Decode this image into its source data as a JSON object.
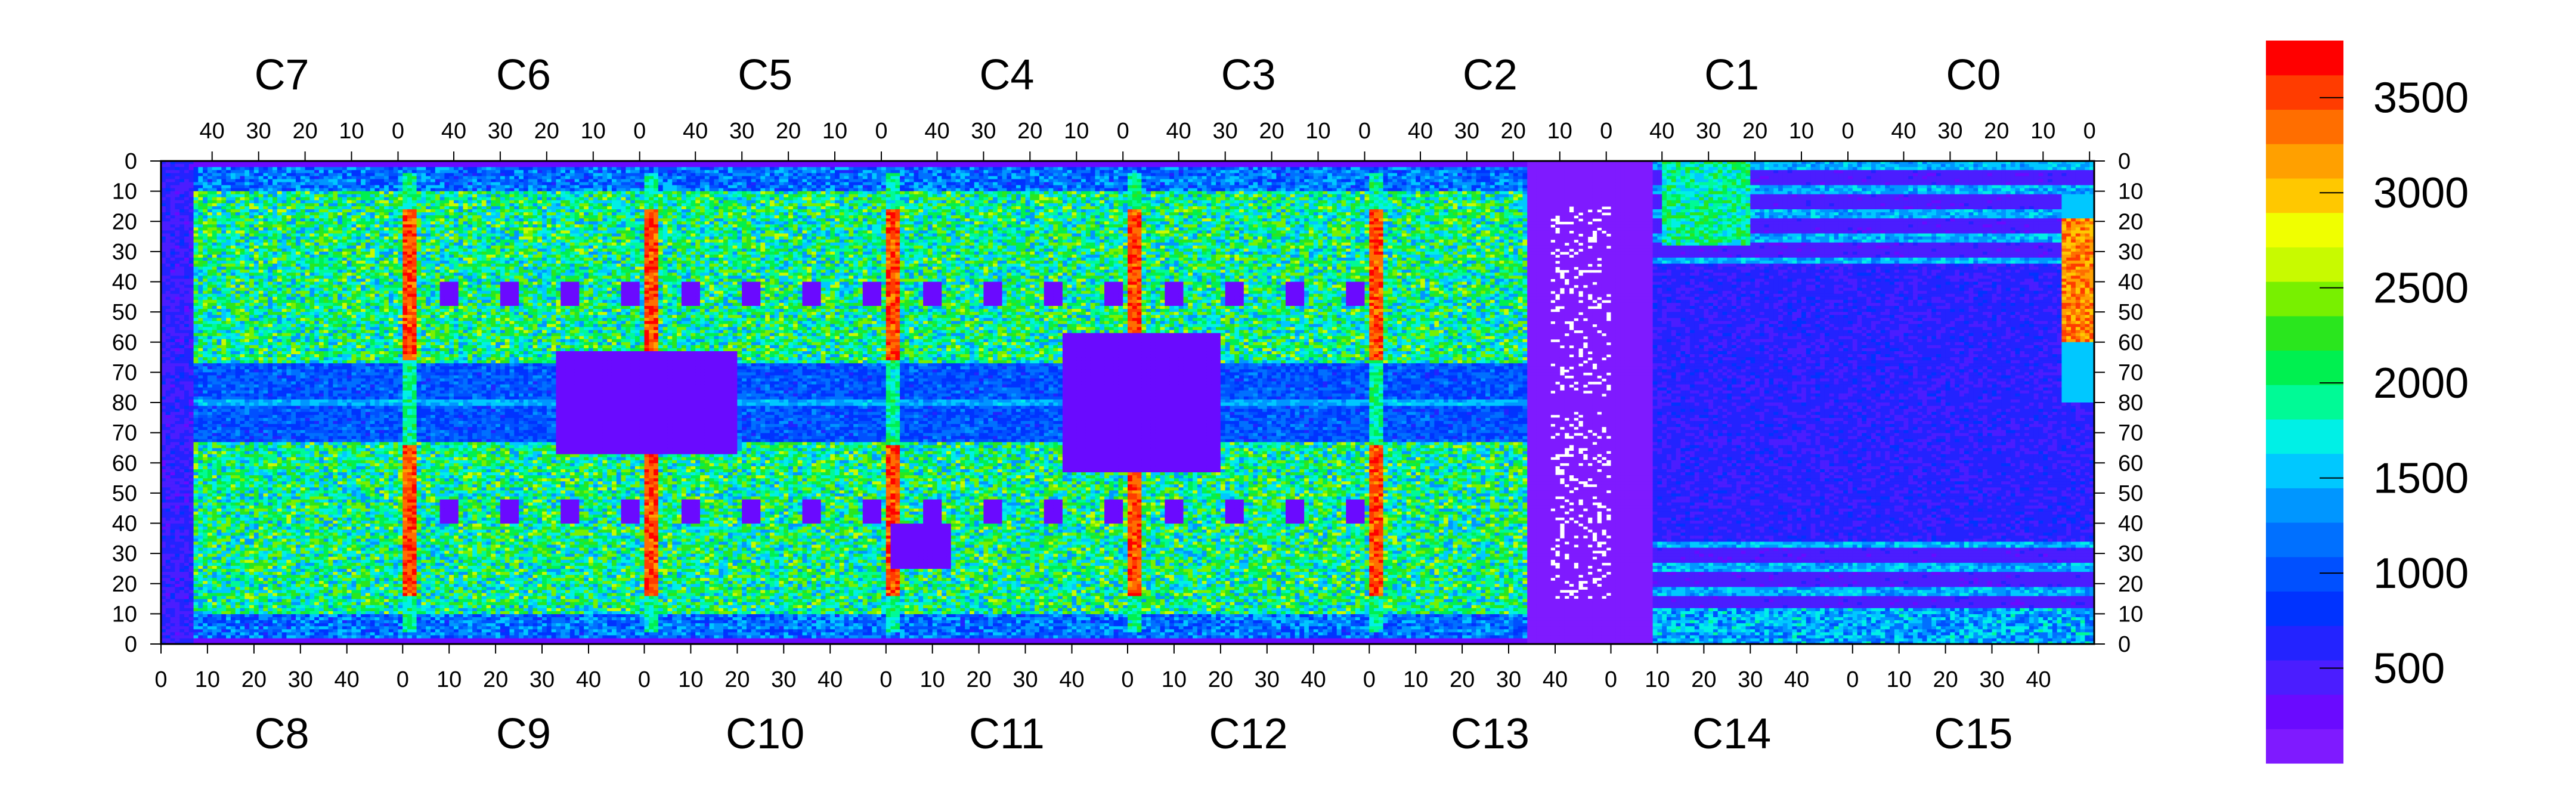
{
  "chart_data": {
    "type": "heatmap",
    "title": "",
    "top_chips": [
      "C7",
      "C6",
      "C5",
      "C4",
      "C3",
      "C2",
      "C1",
      "C0"
    ],
    "bottom_chips": [
      "C8",
      "C9",
      "C10",
      "C11",
      "C12",
      "C13",
      "C14",
      "C15"
    ],
    "x_ticks_top": [
      "40",
      "30",
      "20",
      "10",
      "0"
    ],
    "x_ticks_bottom": [
      "0",
      "10",
      "20",
      "30",
      "40"
    ],
    "y_ticks_upper": [
      "0",
      "10",
      "20",
      "30",
      "40",
      "50",
      "60",
      "70",
      "80"
    ],
    "y_ticks_lower": [
      "70",
      "60",
      "50",
      "40",
      "30",
      "20",
      "10",
      "0"
    ],
    "columns_per_chip": 52,
    "rows_per_half": 80,
    "colorbar": {
      "ticks": [
        "500",
        "1000",
        "1500",
        "2000",
        "2500",
        "3000",
        "3500"
      ],
      "min": 0,
      "max": 3800,
      "colors": [
        "#7f1aff",
        "#6a0aff",
        "#4b1dff",
        "#2323ff",
        "#0033ff",
        "#0050ff",
        "#0070ff",
        "#0096ff",
        "#00c8ff",
        "#00f0e6",
        "#00fa96",
        "#00f050",
        "#2ae61e",
        "#78f000",
        "#c8fa00",
        "#f0ff00",
        "#ffc800",
        "#ffa000",
        "#ff6e00",
        "#ff3c00",
        "#ff0000"
      ]
    },
    "level_map": {
      "background": 1900,
      "dead_cell": "blank",
      "hot_columns": "~3400",
      "blocked_regions": "~200"
    }
  }
}
